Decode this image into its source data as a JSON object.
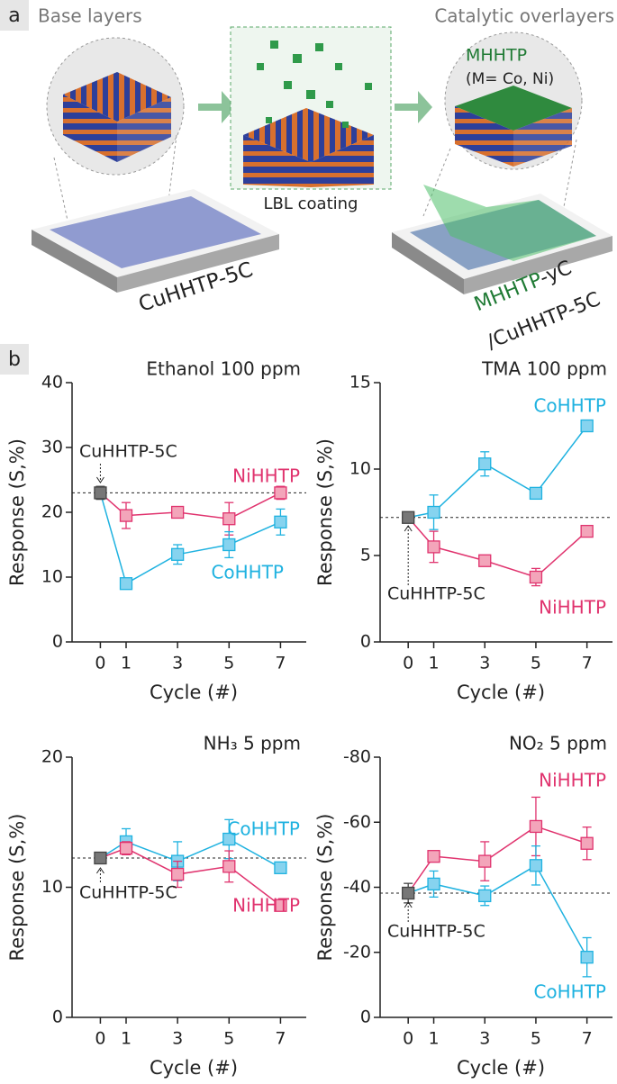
{
  "panel_a": {
    "label": "a",
    "base_title": "Base layers",
    "overlay_title": "Catalytic overlayers",
    "catalyst_name": "MHHTP",
    "catalyst_note": "(M= Co, Ni)",
    "process": "LBL coating",
    "base_film": "CuHHTP-5C",
    "overlay_film": [
      "MHHTP",
      "-yC"
    ],
    "overlay_base": "/CuHHTP-5C"
  },
  "panel_b_label": "b",
  "chart_data": [
    {
      "type": "line",
      "title": "Ethanol 100 ppm",
      "xlabel": "Cycle (#)",
      "ylabel": "Response (S,%)",
      "x": [
        1,
        3,
        5,
        7
      ],
      "xticks": [
        0,
        1,
        3,
        5,
        7
      ],
      "xlim": [
        -1.1,
        8
      ],
      "ylim": [
        0,
        40
      ],
      "yticks": [
        0,
        10,
        20,
        30,
        40
      ],
      "reference": {
        "name": "CuHHTP-5C",
        "x": 0,
        "value": 23,
        "error": 1,
        "color": "#444444"
      },
      "series": [
        {
          "name": "NiHHTP",
          "color": "#e0336e",
          "values": [
            19.5,
            20,
            19,
            23
          ],
          "errors": [
            2,
            0.8,
            2.5,
            1
          ]
        },
        {
          "name": "CoHHTP",
          "color": "#1fb2e0",
          "values": [
            9,
            13.5,
            15,
            18.5
          ],
          "errors": [
            0.5,
            1.5,
            2,
            2
          ]
        }
      ]
    },
    {
      "type": "line",
      "title": "TMA 100 ppm",
      "xlabel": "Cycle (#)",
      "ylabel": "Response (S,%)",
      "x": [
        1,
        3,
        5,
        7
      ],
      "xticks": [
        0,
        1,
        3,
        5,
        7
      ],
      "xlim": [
        -1.1,
        8
      ],
      "ylim": [
        0,
        15
      ],
      "yticks": [
        0,
        5,
        10,
        15
      ],
      "reference": {
        "name": "CuHHTP-5C",
        "x": 0,
        "value": 7.2,
        "error": 0.1,
        "color": "#444444"
      },
      "series": [
        {
          "name": "CoHHTP",
          "color": "#1fb2e0",
          "values": [
            7.5,
            10.3,
            8.6,
            12.5
          ],
          "errors": [
            1,
            0.7,
            0.3,
            0.2
          ]
        },
        {
          "name": "NiHHTP",
          "color": "#e0336e",
          "values": [
            5.5,
            4.7,
            3.75,
            6.4
          ],
          "errors": [
            0.9,
            0.3,
            0.5,
            0.3
          ]
        }
      ]
    },
    {
      "type": "line",
      "title": "NH₃ 5 ppm",
      "xlabel": "Cycle (#)",
      "ylabel": "Response (S,%)",
      "x": [
        1,
        3,
        5,
        7
      ],
      "xticks": [
        0,
        1,
        3,
        5,
        7
      ],
      "xlim": [
        -1.1,
        8
      ],
      "ylim": [
        0,
        20
      ],
      "yticks": [
        0,
        10,
        20
      ],
      "reference": {
        "name": "CuHHTP-5C",
        "x": 0,
        "value": 12.25,
        "error": 0.3,
        "color": "#444444"
      },
      "series": [
        {
          "name": "CoHHTP",
          "color": "#1fb2e0",
          "values": [
            13.5,
            12,
            13.7,
            11.5
          ],
          "errors": [
            1,
            1.5,
            1.5,
            0.2
          ]
        },
        {
          "name": "NiHHTP",
          "color": "#e0336e",
          "values": [
            13,
            11,
            11.6,
            8.6
          ],
          "errors": [
            0.5,
            1,
            1.2,
            0.3
          ]
        }
      ]
    },
    {
      "type": "line",
      "title": "NO₂ 5 ppm",
      "xlabel": "Cycle (#)",
      "ylabel": "Response (S,%)",
      "x": [
        1,
        3,
        5,
        7
      ],
      "xticks": [
        0,
        1,
        3,
        5,
        7
      ],
      "xlim": [
        -1.1,
        8
      ],
      "ylim": [
        0,
        -80
      ],
      "yticks": [
        0,
        -20,
        -40,
        -60,
        -80
      ],
      "reference": {
        "name": "CuHHTP-5C",
        "x": 0,
        "value": -38.2,
        "error": 3,
        "color": "#444444"
      },
      "series": [
        {
          "name": "NiHHTP",
          "color": "#e0336e",
          "values": [
            -49.5,
            -48,
            -58.7,
            -53.5
          ],
          "errors": [
            1,
            6,
            9,
            5
          ]
        },
        {
          "name": "CoHHTP",
          "color": "#1fb2e0",
          "values": [
            -41,
            -37.4,
            -46.7,
            -18.5
          ],
          "errors": [
            4,
            3,
            6,
            6
          ]
        }
      ]
    }
  ]
}
